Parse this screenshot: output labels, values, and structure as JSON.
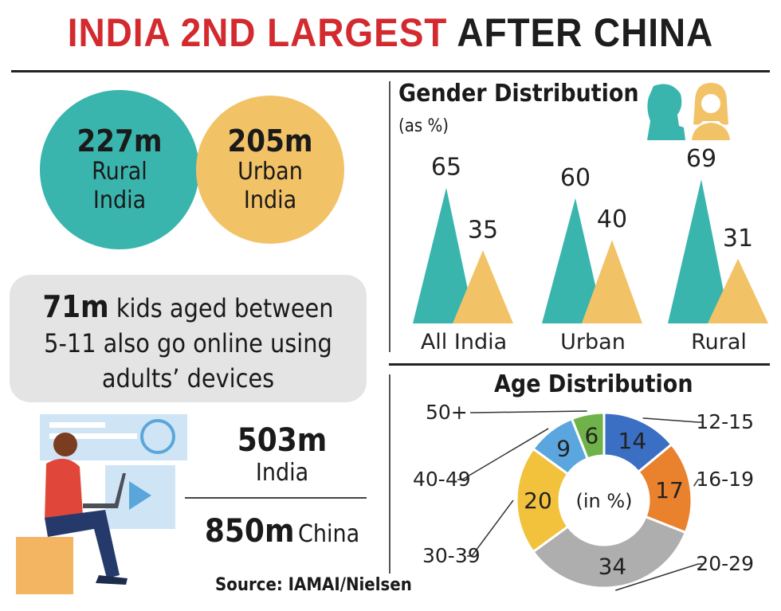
{
  "title": {
    "part1": "INDIA 2ND LARGEST",
    "part2": "AFTER CHINA"
  },
  "colors": {
    "teal": "#3ab5ad",
    "orange": "#f2c266",
    "red": "#d32a2f",
    "gray": "#e3e4e3"
  },
  "rural": {
    "value": "227m",
    "label_line1": "Rural",
    "label_line2": "India"
  },
  "urban": {
    "value": "205m",
    "label_line1": "Urban",
    "label_line2": "India"
  },
  "kids": {
    "value": "71m",
    "line1_rest": " kids aged between",
    "line2": "5-11 also go online using",
    "line3": "adults’ devices"
  },
  "india_stat": {
    "value": "503m",
    "label": "India"
  },
  "china_stat": {
    "value": "850m",
    "label": "China"
  },
  "source": "Source: IAMAI/Nielsen",
  "chart_data": [
    {
      "type": "bar",
      "title": "Gender Distribution",
      "subtitle": "(as %)",
      "categories": [
        "All India",
        "Urban",
        "Rural"
      ],
      "series": [
        {
          "name": "Male",
          "values": [
            65,
            60,
            69
          ]
        },
        {
          "name": "Female",
          "values": [
            35,
            40,
            31
          ]
        }
      ],
      "ylim": [
        0,
        100
      ]
    },
    {
      "type": "pie",
      "title": "Age Distribution",
      "center_label": "(in %)",
      "labels": [
        "12-15",
        "16-19",
        "20-29",
        "30-39",
        "40-49",
        "50+"
      ],
      "values": [
        14,
        17,
        34,
        20,
        9,
        6
      ],
      "colors": [
        "#3a6fc4",
        "#e9812d",
        "#aeaeae",
        "#f2c23d",
        "#5ca6df",
        "#6fb24a"
      ]
    }
  ]
}
